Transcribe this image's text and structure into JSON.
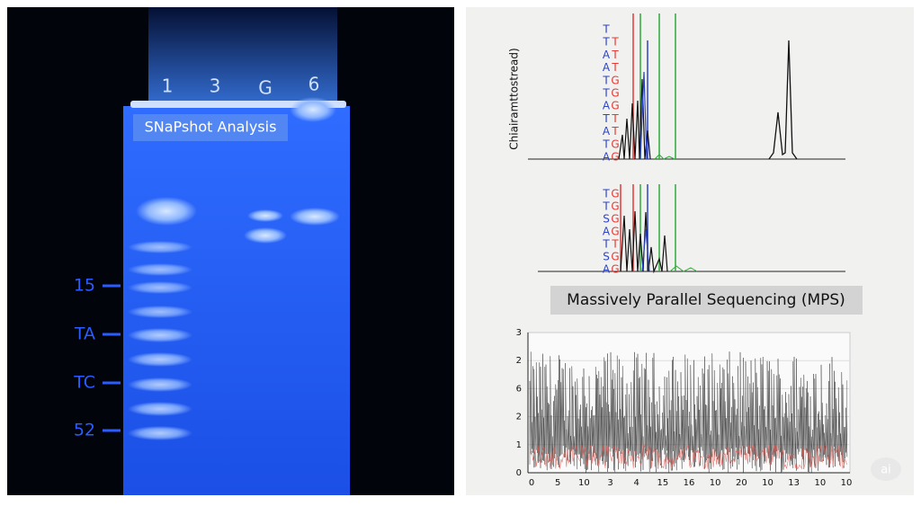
{
  "gel": {
    "title": "SNaPshot Analysis",
    "lanes": [
      "1",
      "3",
      "G",
      "6"
    ],
    "ladder": [
      "15",
      "TA",
      "TC",
      "52"
    ]
  },
  "chromatogram_top": {
    "y_label": "Chiairamttostread)",
    "left_letters": [
      "T",
      "T",
      "A",
      "A",
      "T",
      "T",
      "A",
      "T",
      "A",
      "T",
      "A"
    ],
    "right_letters": [
      "T",
      "T",
      "T",
      "G",
      "G",
      "G",
      "T",
      "T",
      "G",
      "G"
    ]
  },
  "chromatogram_bottom": {
    "left_letters": [
      "T",
      "T",
      "S",
      "A",
      "T",
      "S",
      "A"
    ],
    "right_letters": [
      "G",
      "G",
      "G",
      "G",
      "T",
      "G",
      "G"
    ]
  },
  "mps": {
    "title": "Massively Parallel Sequencing (MPS)",
    "y_labels": [
      "3",
      "2",
      "6",
      "2",
      "1",
      "0"
    ],
    "x_labels": [
      "0",
      "5",
      "10",
      "3",
      "4",
      "15",
      "16",
      "10",
      "20",
      "10",
      "13",
      "10",
      "10"
    ]
  },
  "watermark": "ai"
}
